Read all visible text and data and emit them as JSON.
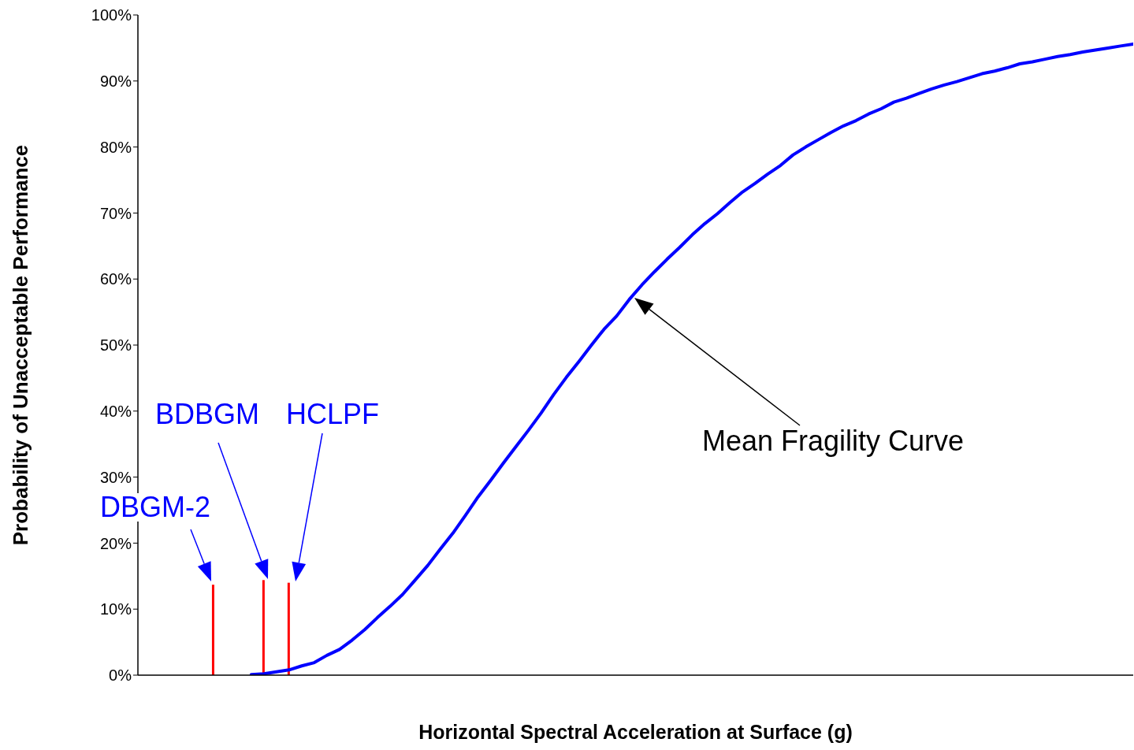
{
  "chart_data": {
    "type": "line",
    "xlabel": "Horizontal Spectral Acceleration at Surface (g)",
    "ylabel": "Probability of Unacceptable Performance",
    "categories": [
      null,
      null,
      null,
      null,
      null,
      null,
      null,
      null,
      null,
      null,
      null,
      null,
      null,
      null,
      null,
      null,
      null,
      null,
      null,
      null,
      null,
      null,
      null,
      null,
      null,
      null,
      null,
      null,
      null,
      null,
      null,
      null,
      null,
      null,
      null,
      null,
      null,
      null,
      null,
      null,
      null,
      null,
      null,
      null,
      null,
      null,
      null,
      null,
      null,
      null,
      null,
      null,
      null,
      null,
      null,
      null,
      null,
      null,
      null,
      null,
      null,
      null,
      null,
      null,
      null,
      null,
      null,
      null,
      null,
      null,
      null,
      null,
      null,
      null,
      null,
      null,
      null,
      null,
      null,
      null
    ],
    "series": [
      {
        "color": "#0000ff",
        "values": [
          null,
          null,
          null,
          null,
          null,
          null,
          null,
          null,
          null,
          0.1,
          0.2,
          0.5,
          0.8,
          1.4,
          1.9,
          3.0,
          3.9,
          5.3,
          6.9,
          8.7,
          10.4,
          12.2,
          14.4,
          16.6,
          19.1,
          21.5,
          24.2,
          27.0,
          29.5,
          32.1,
          34.6,
          37.1,
          39.7,
          42.5,
          45.1,
          47.5,
          50.0,
          52.4,
          54.4,
          56.9,
          59.1,
          61.1,
          63.0,
          64.8,
          66.7,
          68.4,
          69.9,
          71.6,
          73.2,
          74.5,
          75.9,
          77.2,
          78.8,
          80.0,
          81.1,
          82.2,
          83.2,
          84.0,
          85.0,
          85.8,
          86.8,
          87.4,
          88.1,
          88.8,
          89.4,
          89.9,
          90.5,
          91.1,
          91.5,
          92.0,
          92.6,
          92.9,
          93.3,
          93.7,
          94.0,
          94.4,
          94.7,
          95.0,
          95.3,
          95.6
        ]
      },
      {
        "type": "bar",
        "color": "#ff0000",
        "values": [
          null,
          null,
          null,
          null,
          null,
          null,
          13.7,
          null,
          null,
          null,
          14.4,
          null,
          14.0,
          null,
          null,
          null,
          null,
          null,
          null,
          null,
          null,
          null,
          null,
          null,
          null,
          null,
          null,
          null,
          null,
          null,
          null,
          null,
          null,
          null,
          null,
          null,
          null,
          null,
          null,
          null,
          null,
          null,
          null,
          null,
          null,
          null,
          null,
          null,
          null,
          null,
          null,
          null,
          null,
          null,
          null,
          null,
          null,
          null,
          null,
          null,
          null,
          null,
          null,
          null,
          null,
          null,
          null,
          null,
          null,
          null,
          null,
          null,
          null,
          null,
          null,
          null,
          null,
          null,
          null,
          null
        ]
      }
    ],
    "ylim": [
      0,
      100
    ],
    "yticks": [
      {
        "value": 0,
        "label": "0%"
      },
      {
        "value": 10,
        "label": "10%"
      },
      {
        "value": 20,
        "label": "20%"
      },
      {
        "value": 30,
        "label": "30%"
      },
      {
        "value": 40,
        "label": "40%"
      },
      {
        "value": 50,
        "label": "50%"
      },
      {
        "value": 60,
        "label": "60%"
      },
      {
        "value": 70,
        "label": "70%"
      },
      {
        "value": 80,
        "label": "80%"
      },
      {
        "value": 90,
        "label": "90%"
      },
      {
        "value": 100,
        "label": "100%"
      }
    ],
    "tick_labels": "y",
    "marker": "none",
    "line_style": "solid",
    "annotations": [
      "DBGM-2",
      "BDBGM",
      "HCLPF",
      "Mean Fragility Curve"
    ]
  }
}
